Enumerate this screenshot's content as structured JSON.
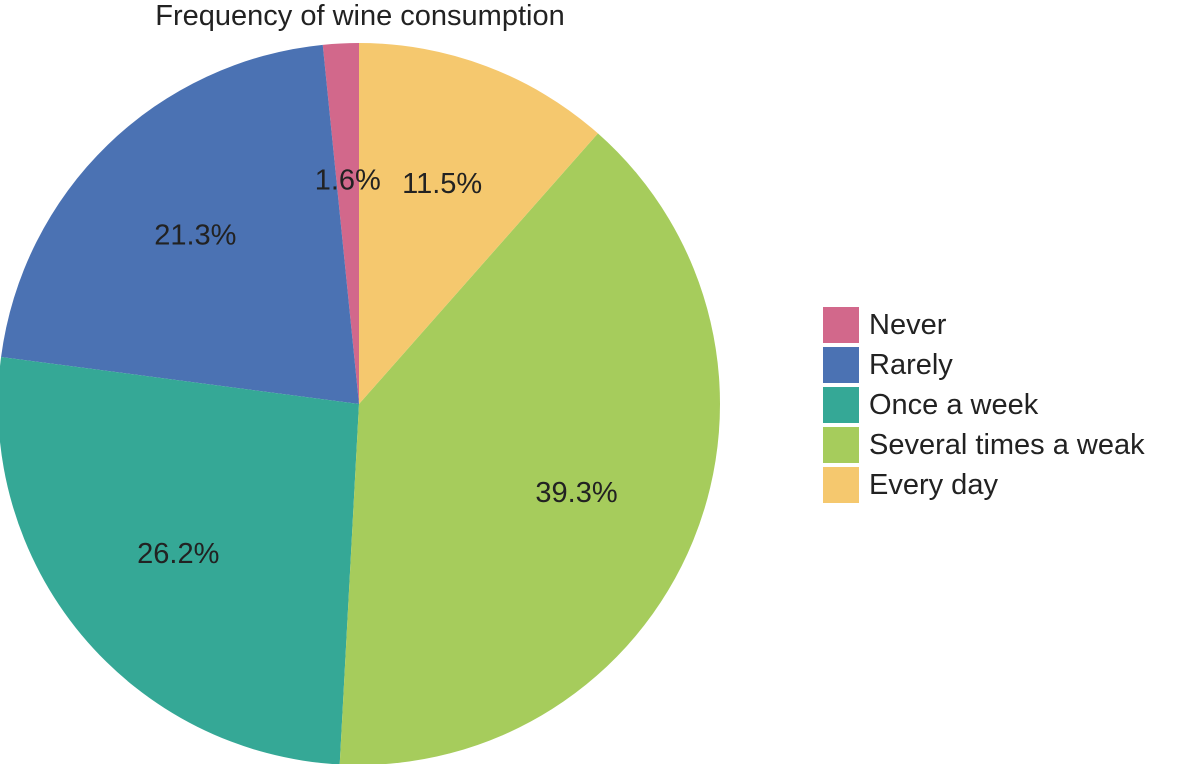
{
  "chart_data": {
    "type": "pie",
    "title": "Frequency of wine consumption",
    "start": "12 o'clock",
    "direction": "counterclockwise",
    "slices": [
      {
        "name": "Never",
        "value": 1.6,
        "label": "1.6%",
        "color": "#d2688b"
      },
      {
        "name": "Rarely",
        "value": 21.3,
        "label": "21.3%",
        "color": "#4b72b3"
      },
      {
        "name": "Once a week",
        "value": 26.2,
        "label": "26.2%",
        "color": "#35a896"
      },
      {
        "name": "Several times a weak",
        "value": 39.3,
        "label": "39.3%",
        "color": "#a6cc5c"
      },
      {
        "name": "Every day",
        "value": 11.5,
        "label": "11.5%",
        "color": "#f5c86e"
      }
    ],
    "legend": {
      "position": "right"
    }
  }
}
